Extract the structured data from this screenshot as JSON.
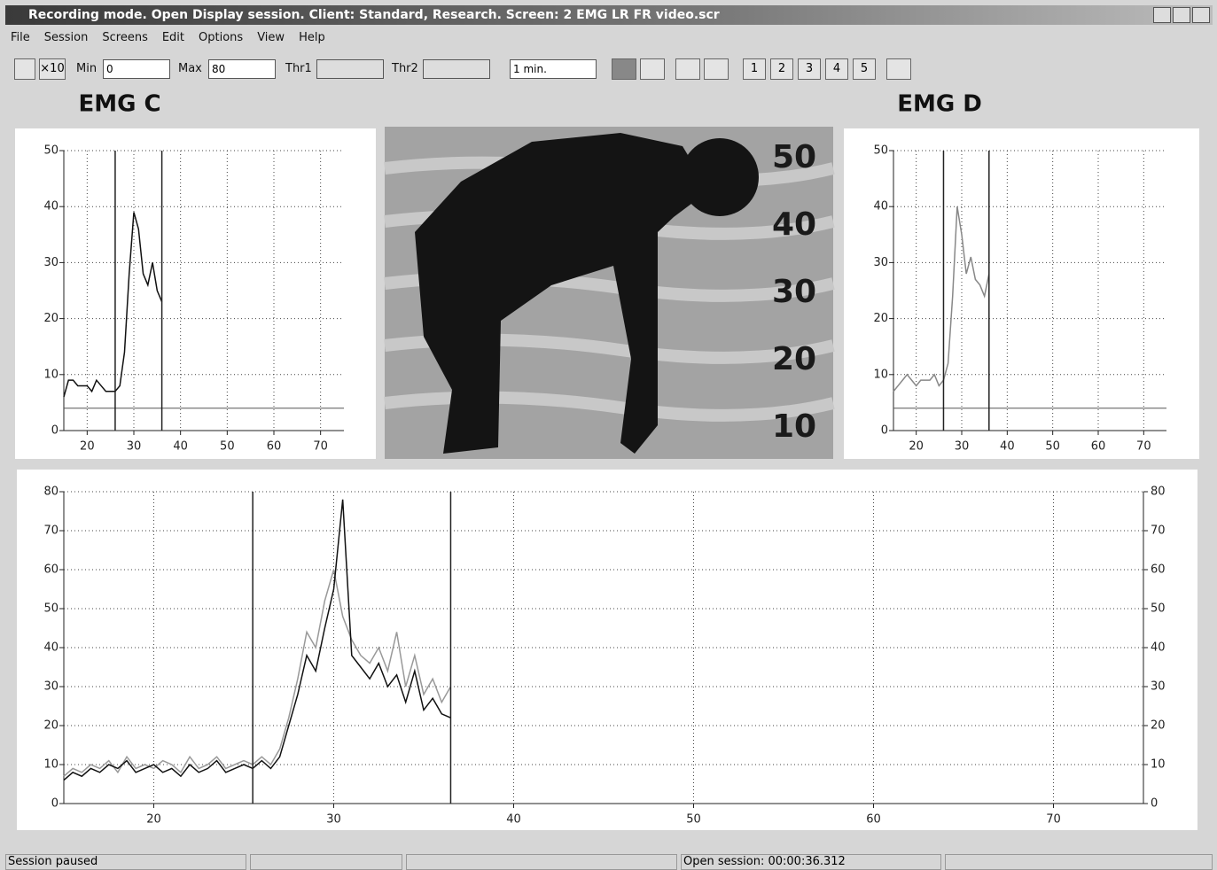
{
  "window": {
    "title": "Recording mode. Open Display session. Client: Standard, Research. Screen: 2 EMG LR FR video.scr"
  },
  "menu": [
    "File",
    "Session",
    "Screens",
    "Edit",
    "Options",
    "View",
    "Help"
  ],
  "toolbar": {
    "x10": "×10",
    "min_label": "Min",
    "min": 0,
    "max_label": "Max",
    "max": 80,
    "thr1": "Thr1",
    "thr2": "Thr2",
    "period": "1 min.",
    "pages": [
      "1",
      "2",
      "3",
      "4",
      "5"
    ]
  },
  "video": {
    "scale": [
      50,
      40,
      30,
      20,
      10
    ]
  },
  "status": [
    "Session paused",
    "Open session: 00:00:36.312"
  ],
  "chart_data": [
    {
      "type": "line",
      "title": "EMG C",
      "xlim": [
        15,
        75
      ],
      "ylim": [
        0,
        50
      ],
      "xticks": [
        20,
        30,
        40,
        50,
        60,
        70
      ],
      "yticks": [
        0,
        10,
        20,
        30,
        40,
        50
      ],
      "grid": true,
      "vlines": [
        26,
        36
      ],
      "hline": 4,
      "x": [
        15,
        16,
        17,
        18,
        19,
        20,
        21,
        22,
        23,
        24,
        25,
        26,
        27,
        28,
        29,
        30,
        31,
        32,
        33,
        34,
        35,
        36
      ],
      "series": [
        {
          "color": "#111111",
          "values": [
            6,
            9,
            9,
            8,
            8,
            8,
            7,
            9,
            8,
            7,
            7,
            7,
            8,
            14,
            28,
            39,
            36,
            28,
            26,
            30,
            25,
            23
          ]
        }
      ]
    },
    {
      "type": "line",
      "title": "EMG D",
      "xlim": [
        15,
        75
      ],
      "ylim": [
        0,
        50
      ],
      "xticks": [
        20,
        30,
        40,
        50,
        60,
        70
      ],
      "yticks": [
        0,
        10,
        20,
        30,
        40,
        50
      ],
      "grid": true,
      "vlines": [
        26,
        36
      ],
      "hline": 4,
      "x": [
        15,
        16,
        17,
        18,
        19,
        20,
        21,
        22,
        23,
        24,
        25,
        26,
        27,
        28,
        29,
        30,
        31,
        32,
        33,
        34,
        35,
        36
      ],
      "series": [
        {
          "color": "#888888",
          "values": [
            7,
            8,
            9,
            10,
            9,
            8,
            9,
            9,
            9,
            10,
            8,
            9,
            12,
            24,
            40,
            35,
            28,
            31,
            27,
            26,
            24,
            28
          ]
        }
      ]
    },
    {
      "type": "line",
      "xlim": [
        15,
        75
      ],
      "ylim": [
        0,
        80
      ],
      "y2lim": [
        0,
        80
      ],
      "xticks": [
        20,
        30,
        40,
        50,
        60,
        70
      ],
      "yticks": [
        0,
        10,
        20,
        30,
        40,
        50,
        60,
        70,
        80
      ],
      "y2ticks": [
        0,
        10,
        20,
        30,
        40,
        50,
        60,
        70,
        80
      ],
      "grid": true,
      "vlines": [
        25.5,
        36.5
      ],
      "x": [
        15,
        15.5,
        16,
        16.5,
        17,
        17.5,
        18,
        18.5,
        19,
        19.5,
        20,
        20.5,
        21,
        21.5,
        22,
        22.5,
        23,
        23.5,
        24,
        24.5,
        25,
        25.5,
        26,
        26.5,
        27,
        27.5,
        28,
        28.5,
        29,
        29.5,
        30,
        30.5,
        31,
        31.5,
        32,
        32.5,
        33,
        33.5,
        34,
        34.5,
        35,
        35.5,
        36,
        36.5
      ],
      "series": [
        {
          "color": "#999999",
          "values": [
            7,
            9,
            8,
            10,
            9,
            11,
            8,
            12,
            9,
            10,
            9,
            11,
            10,
            8,
            12,
            9,
            10,
            12,
            9,
            10,
            11,
            10,
            12,
            10,
            14,
            22,
            32,
            44,
            40,
            52,
            60,
            48,
            42,
            38,
            36,
            40,
            34,
            44,
            30,
            38,
            28,
            32,
            26,
            30
          ]
        },
        {
          "color": "#111111",
          "values": [
            6,
            8,
            7,
            9,
            8,
            10,
            9,
            11,
            8,
            9,
            10,
            8,
            9,
            7,
            10,
            8,
            9,
            11,
            8,
            9,
            10,
            9,
            11,
            9,
            12,
            20,
            28,
            38,
            34,
            45,
            55,
            78,
            38,
            35,
            32,
            36,
            30,
            33,
            26,
            34,
            24,
            27,
            23,
            22
          ]
        }
      ]
    }
  ]
}
